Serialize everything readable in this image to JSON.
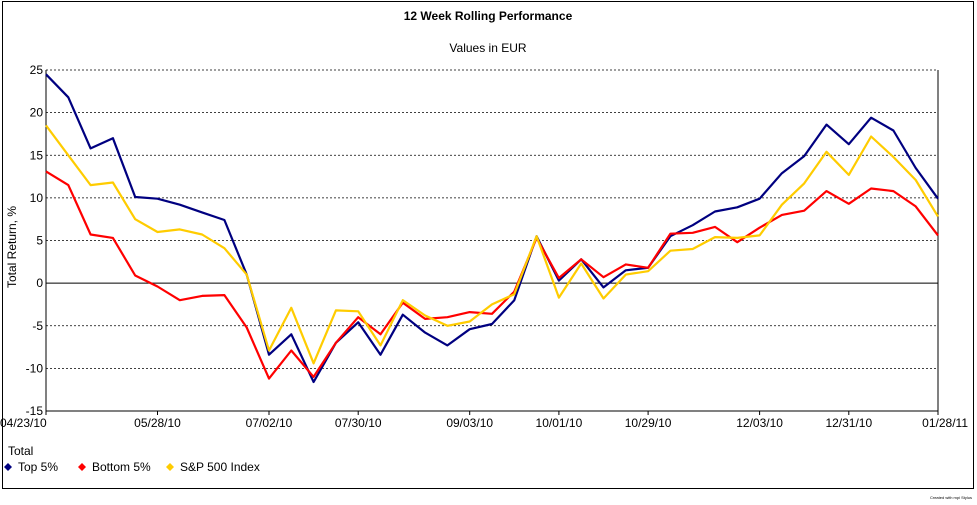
{
  "chart_data": {
    "type": "line",
    "title": "12 Week Rolling Performance",
    "subtitle": "Values in EUR",
    "ylabel": "Total Return, %",
    "xlabel": "",
    "ylim": [
      -15,
      25
    ],
    "yticks": [
      25,
      20,
      15,
      10,
      5,
      0,
      -5,
      -10,
      -15
    ],
    "grid": true,
    "legend_title": "Total",
    "legend_position": "bottom-left",
    "x_tick_labels": [
      {
        "index": 0,
        "label": "04/23/10"
      },
      {
        "index": 5,
        "label": "05/28/10"
      },
      {
        "index": 10,
        "label": "07/02/10"
      },
      {
        "index": 14,
        "label": "07/30/10"
      },
      {
        "index": 19,
        "label": "09/03/10"
      },
      {
        "index": 23,
        "label": "10/01/10"
      },
      {
        "index": 27,
        "label": "10/29/10"
      },
      {
        "index": 32,
        "label": "12/03/10"
      },
      {
        "index": 36,
        "label": "12/31/10"
      },
      {
        "index": 40,
        "label": "01/28/11"
      }
    ],
    "series": [
      {
        "name": "Top 5%",
        "color": "#000080",
        "values": [
          24.5,
          21.8,
          15.8,
          17.0,
          10.1,
          9.9,
          9.2,
          8.3,
          7.4,
          1.0,
          -8.4,
          -6.0,
          -11.6,
          -7.0,
          -4.6,
          -8.4,
          -3.7,
          -5.8,
          -7.3,
          -5.4,
          -4.8,
          -2.0,
          5.5,
          0.3,
          2.8,
          -0.5,
          1.5,
          1.8,
          5.5,
          6.8,
          8.4,
          8.9,
          9.9,
          12.9,
          14.9,
          18.6,
          16.3,
          19.4,
          17.9,
          13.5,
          9.9
        ]
      },
      {
        "name": "Bottom 5%",
        "color": "#ff0000",
        "values": [
          13.1,
          11.5,
          5.7,
          5.3,
          0.9,
          -0.4,
          -2.0,
          -1.5,
          -1.4,
          -5.2,
          -11.2,
          -7.9,
          -11.0,
          -7.0,
          -4.0,
          -6.0,
          -2.3,
          -4.2,
          -4.0,
          -3.4,
          -3.6,
          -1.0,
          5.3,
          0.6,
          2.8,
          0.7,
          2.2,
          1.8,
          5.8,
          5.9,
          6.6,
          4.8,
          6.5,
          8.0,
          8.5,
          10.8,
          9.3,
          11.1,
          10.8,
          9.0,
          5.6
        ]
      },
      {
        "name": "S&P 500 Index",
        "color": "#ffcc00",
        "values": [
          18.5,
          15.0,
          11.5,
          11.8,
          7.5,
          6.0,
          6.3,
          5.7,
          4.1,
          1.0,
          -7.9,
          -2.9,
          -9.4,
          -3.2,
          -3.3,
          -7.3,
          -2.0,
          -3.8,
          -5.0,
          -4.5,
          -2.5,
          -1.3,
          5.5,
          -1.7,
          2.3,
          -1.8,
          1.0,
          1.4,
          3.8,
          4.0,
          5.4,
          5.3,
          5.6,
          9.2,
          11.7,
          15.4,
          12.7,
          17.2,
          14.8,
          12.1,
          7.8
        ]
      }
    ]
  },
  "credit": "Created with mpi Stylus"
}
